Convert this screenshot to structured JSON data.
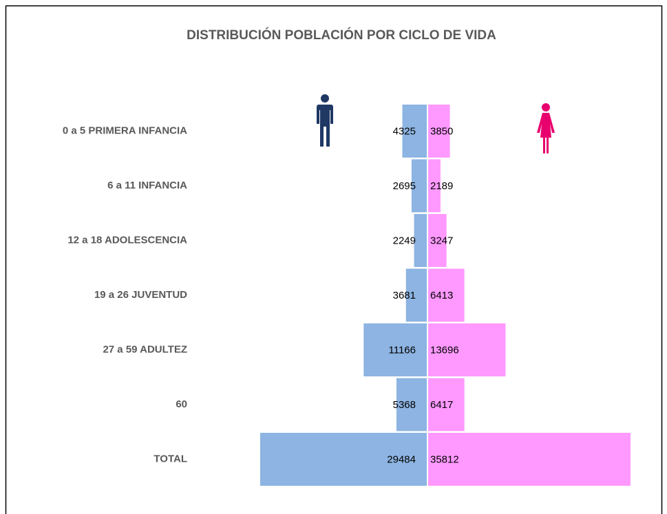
{
  "chart_data": {
    "type": "pyramid",
    "title": "DISTRIBUCIÓN POBLACIÓN POR CICLO DE VIDA",
    "categories": [
      "0 a 5 PRIMERA INFANCIA",
      "6 a 11 INFANCIA",
      "12 a 18 ADOLESCENCIA",
      "19 a 26 JUVENTUD",
      "27 a 59 ADULTEZ",
      "60",
      "TOTAL"
    ],
    "series": [
      {
        "color": "#8db4e2",
        "values": [
          4325,
          2695,
          2249,
          3681,
          11166,
          5368,
          29484
        ]
      },
      {
        "color": "#ff99ff",
        "values": [
          3850,
          2189,
          3247,
          6413,
          13696,
          6417,
          35812
        ]
      }
    ]
  }
}
